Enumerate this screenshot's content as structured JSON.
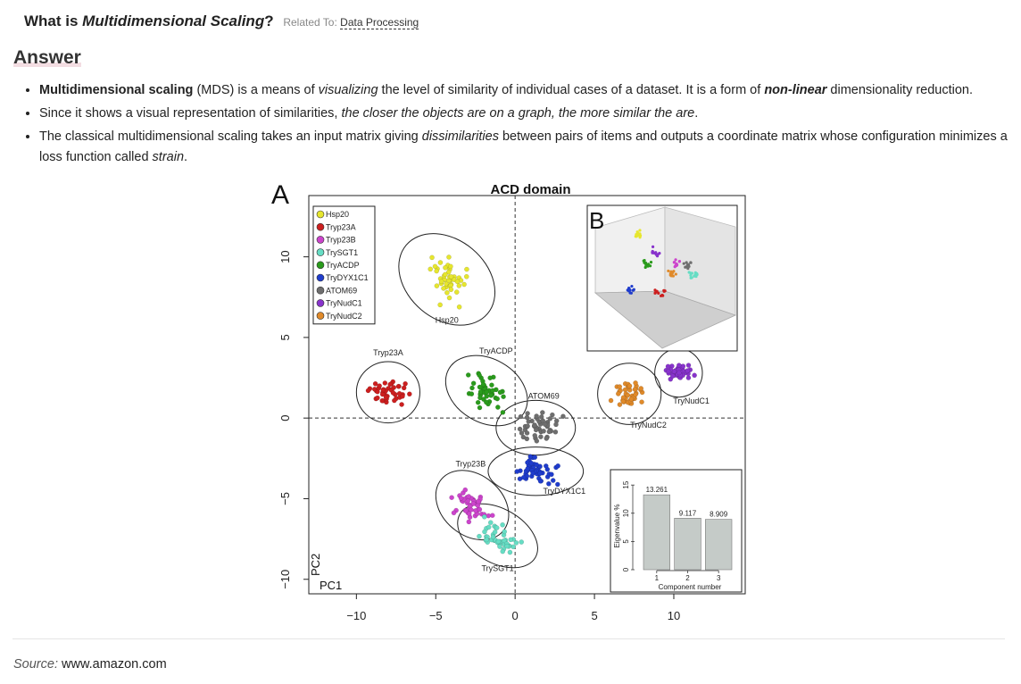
{
  "question": {
    "prefix": "What is ",
    "term": "Multidimensional Scaling",
    "suffix": "?",
    "related_label": "Related To:",
    "related_link": "Data Processing"
  },
  "answer_heading": "Answer",
  "bullets": [
    {
      "parts": [
        {
          "t": "Multidimensional scaling",
          "s": "b"
        },
        {
          "t": " (MDS) is a means of ",
          "s": ""
        },
        {
          "t": "visualizing",
          "s": "i"
        },
        {
          "t": " the level of similarity of individual cases of a dataset. It is a form of ",
          "s": ""
        },
        {
          "t": "non-linear",
          "s": "bi"
        },
        {
          "t": " dimensionality reduction.",
          "s": ""
        }
      ]
    },
    {
      "parts": [
        {
          "t": "Since it shows a visual representation of similarities, ",
          "s": ""
        },
        {
          "t": "the closer the objects are on a graph, the more similar the are",
          "s": "i"
        },
        {
          "t": ".",
          "s": ""
        }
      ]
    },
    {
      "parts": [
        {
          "t": "The classical multidimensional scaling takes an input matrix giving ",
          "s": ""
        },
        {
          "t": "dissimilarities",
          "s": "i"
        },
        {
          "t": " between pairs of items and outputs a coordinate matrix whose configuration minimizes a loss function called ",
          "s": ""
        },
        {
          "t": "strain",
          "s": "i"
        },
        {
          "t": ".",
          "s": ""
        }
      ]
    }
  ],
  "figure": {
    "panel_a_label": "A",
    "panel_b_label": "B",
    "chart_data": [
      {
        "type": "scatter",
        "title": "ACD domain",
        "xlabel": "PC1",
        "ylabel": "PC2",
        "xlim": [
          -13,
          14.5
        ],
        "ylim": [
          -10.9,
          13.8
        ],
        "xticks": [
          -10,
          -5,
          0,
          5,
          10
        ],
        "yticks": [
          -10,
          -5,
          0,
          5,
          10
        ],
        "xtick_labels": [
          "−10",
          "−5",
          "0",
          "5",
          "10"
        ],
        "ytick_labels": [
          "−10",
          "−5",
          "0",
          "5",
          "10"
        ],
        "reference_lines": {
          "x": 0,
          "y": 0,
          "style": "dashed"
        },
        "legend_position": "top-left",
        "series": [
          {
            "name": "Hsp20",
            "color": "#e6e62e",
            "center": [
              -4.3,
              8.6
            ],
            "spread": [
              1.1,
              1.6
            ],
            "n": 45,
            "ellipse": {
              "rx": 2.5,
              "ry": 3.3,
              "angle": -50
            },
            "label": "Hsp20",
            "label_at": [
              -4.3,
              5.9
            ]
          },
          {
            "name": "Tryp23A",
            "color": "#cc1f1f",
            "center": [
              -8.0,
              1.6
            ],
            "spread": [
              1.3,
              0.6
            ],
            "n": 45,
            "ellipse": {
              "rx": 2.0,
              "ry": 1.9,
              "angle": 0
            },
            "label": "Tryp23A",
            "label_at": [
              -8.0,
              3.9
            ]
          },
          {
            "name": "Tryp23B",
            "color": "#cc44cc",
            "center": [
              -2.7,
              -5.4
            ],
            "spread": [
              1.0,
              0.8
            ],
            "n": 45,
            "ellipse": {
              "rx": 1.9,
              "ry": 2.5,
              "angle": -50
            },
            "label": "Tryp23B",
            "label_at": [
              -2.8,
              -3.0
            ]
          },
          {
            "name": "TrySGT1",
            "color": "#66ddc4",
            "center": [
              -1.1,
              -7.3
            ],
            "spread": [
              0.7,
              0.9
            ],
            "n": 45,
            "ellipse": {
              "rx": 1.7,
              "ry": 2.7,
              "angle": -60
            },
            "label": "TrySGT1",
            "label_at": [
              -1.1,
              -9.5
            ]
          },
          {
            "name": "TryACDP",
            "color": "#2a9b1c",
            "center": [
              -1.8,
              1.7
            ],
            "spread": [
              1.4,
              0.7
            ],
            "n": 45,
            "ellipse": {
              "rx": 2.0,
              "ry": 2.7,
              "angle": -60
            },
            "label": "TryACDP",
            "label_at": [
              -1.2,
              4.0
            ]
          },
          {
            "name": "TryDYX1C1",
            "color": "#1f3ccc",
            "center": [
              1.3,
              -3.3
            ],
            "spread": [
              1.3,
              0.8
            ],
            "n": 50,
            "ellipse": {
              "rx": 3.0,
              "ry": 1.5,
              "angle": 0
            },
            "label": "TryDYX1C1",
            "label_at": [
              3.1,
              -4.7
            ]
          },
          {
            "name": "ATOM69",
            "color": "#6e6e6e",
            "center": [
              1.3,
              -0.6
            ],
            "spread": [
              1.4,
              0.9
            ],
            "n": 50,
            "ellipse": {
              "rx": 2.5,
              "ry": 1.7,
              "angle": 0
            },
            "label": "ATOM69",
            "label_at": [
              1.8,
              1.2
            ]
          },
          {
            "name": "TryNudC1",
            "color": "#8833cc",
            "center": [
              10.3,
              2.8
            ],
            "spread": [
              0.8,
              0.6
            ],
            "n": 40,
            "ellipse": {
              "rx": 1.5,
              "ry": 1.5,
              "angle": 0
            },
            "label": "TryNudC1",
            "label_at": [
              11.1,
              0.9
            ]
          },
          {
            "name": "TryNudC2",
            "color": "#e08a2a",
            "center": [
              7.2,
              1.5
            ],
            "spread": [
              1.0,
              0.7
            ],
            "n": 45,
            "ellipse": {
              "rx": 2.0,
              "ry": 1.9,
              "angle": 0
            },
            "label": "TryNudC2",
            "label_at": [
              8.4,
              -0.6
            ]
          }
        ]
      },
      {
        "type": "bar",
        "xlabel": "Component number",
        "ylabel": "Eigenvalue %",
        "categories": [
          "1",
          "2",
          "3"
        ],
        "values": [
          13.261,
          9.117,
          8.909
        ],
        "value_labels": [
          "13.261",
          "9.117",
          "8.909"
        ],
        "yticks": [
          0,
          5,
          10,
          15
        ],
        "ylim": [
          0,
          15.5
        ],
        "color": "#c5cbc8"
      }
    ]
  },
  "source": {
    "label": "Source:",
    "value": "www.amazon.com"
  }
}
